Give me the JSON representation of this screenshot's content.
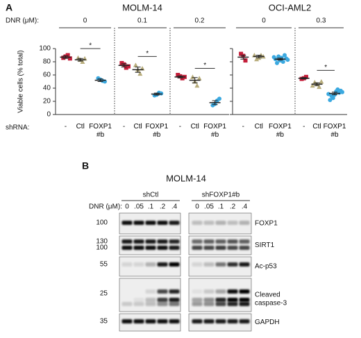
{
  "panel_labels": [
    "A",
    "B"
  ],
  "chart_data": [
    {
      "type": "dot",
      "title": "MOLM-14",
      "y_label": "Viable cells (% total)",
      "dose_label": "DNR (μM):",
      "shrna_label": "shRNA:",
      "ylim": [
        0,
        100
      ],
      "yticks": [
        0,
        20,
        40,
        60,
        80,
        100
      ],
      "show_tick_labels": true,
      "categories": [
        "-",
        "Ctl",
        "FOXP1 #b"
      ],
      "colors": [
        "#c41e3a",
        "#b8ad7c",
        "#3ba9e0"
      ],
      "groups": [
        {
          "dose": "0",
          "points": [
            [
              88,
              90,
              86,
              85
            ],
            [
              83,
              80,
              86,
              85
            ],
            [
              53,
              51,
              55,
              50
            ]
          ],
          "means": [
            87,
            83,
            52
          ],
          "errors": [
            2,
            2,
            2
          ],
          "significance": "*"
        },
        {
          "dose": "0.1",
          "points": [
            [
              76,
              71,
              78,
              73
            ],
            [
              68,
              62,
              75,
              70
            ],
            [
              30,
              33,
              29,
              32
            ]
          ],
          "means": [
            74.5,
            68,
            31
          ],
          "errors": [
            2.5,
            4,
            1.5
          ],
          "significance": "*"
        },
        {
          "dose": "0.2",
          "points": [
            [
              58,
              55,
              60,
              57
            ],
            [
              50,
              44,
              57,
              55
            ],
            [
              16,
              21,
              14,
              24
            ]
          ],
          "means": [
            57,
            52,
            18
          ],
          "errors": [
            1.5,
            4,
            3
          ],
          "significance": "*"
        }
      ]
    },
    {
      "type": "dot",
      "title": "OCI-AML2",
      "ylim": [
        0,
        100
      ],
      "yticks": [
        0,
        20,
        40,
        60,
        80,
        100
      ],
      "show_tick_labels": false,
      "categories": [
        "-",
        "Ctl",
        "FOXP1 #b"
      ],
      "colors": [
        "#c41e3a",
        "#b8ad7c",
        "#3ba9e0"
      ],
      "groups": [
        {
          "dose": "0",
          "points": [
            [
              89,
              82,
              92
            ],
            [
              86,
              90,
              84,
              88,
              90
            ],
            [
              82,
              86,
              88,
              80,
              78,
              90,
              84,
              85,
              87,
              83
            ]
          ],
          "means": [
            87,
            88,
            84
          ],
          "errors": [
            3,
            2,
            1.5
          ]
        },
        {
          "dose": "0.3",
          "points": [
            [
              55,
              57,
              54
            ],
            [
              46,
              42,
              49,
              50,
              44
            ],
            [
              30,
              35,
              25,
              38,
              28,
              33,
              22,
              36,
              31,
              34
            ]
          ],
          "means": [
            55,
            46,
            32
          ],
          "errors": [
            1,
            2,
            2
          ],
          "significance": "*"
        }
      ]
    }
  ],
  "blot": {
    "title": "MOLM-14",
    "groups": [
      "shCtl",
      "shFOXP1#b"
    ],
    "dose_label": "DNR (μM):",
    "doses": [
      "0",
      ".05",
      ".1",
      ".2",
      ".4"
    ],
    "rows": [
      {
        "label": [
          "FOXP1"
        ],
        "markers": [
          "100"
        ]
      },
      {
        "label": [
          "SIRT1"
        ],
        "markers": [
          "130",
          "100"
        ]
      },
      {
        "label": [
          "Ac-p53"
        ],
        "markers": [
          "55"
        ]
      },
      {
        "label": [
          "Cleaved",
          "caspase-3"
        ],
        "markers": [
          "25"
        ]
      },
      {
        "label": [
          "GAPDH"
        ],
        "markers": [
          "35"
        ]
      }
    ]
  }
}
